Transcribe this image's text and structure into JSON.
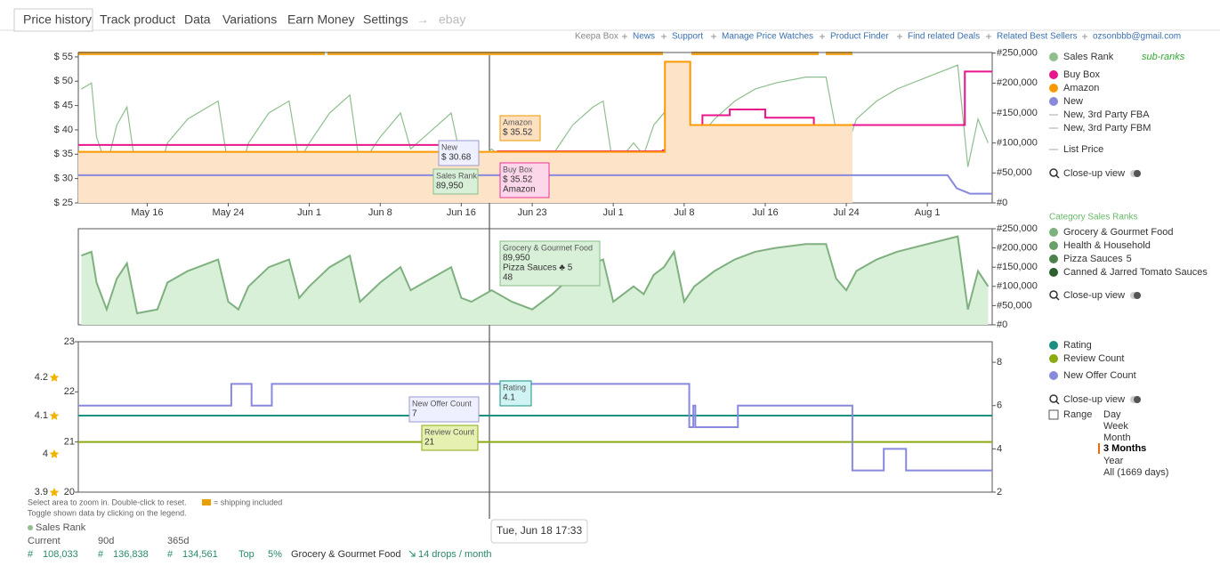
{
  "tabs": [
    "Price history",
    "Track product",
    "Data",
    "Variations",
    "Earn Money",
    "Settings",
    "→",
    "ebay"
  ],
  "links": [
    "Keepa Box",
    "News",
    "Support",
    "Manage Price Watches",
    "Product Finder",
    "Find related Deals",
    "Related Best Sellers",
    "ozsonbbb@gmail.com"
  ],
  "charts": [
    {
      "type": "line",
      "xlim": [
        129.2,
        219.4
      ],
      "xticks": [
        {
          "value": 136,
          "label": "May 16"
        },
        {
          "value": 144,
          "label": "May 24"
        },
        {
          "value": 152,
          "label": "Jun 1"
        },
        {
          "value": 159,
          "label": "Jun 8"
        },
        {
          "value": 167,
          "label": "Jun 16"
        },
        {
          "value": 174,
          "label": "Jun 23"
        },
        {
          "value": 182,
          "label": "Jul 1"
        },
        {
          "value": 189,
          "label": "Jul 8"
        },
        {
          "value": 197,
          "label": "Jul 16"
        },
        {
          "value": 205,
          "label": "Jul 24"
        },
        {
          "value": 213,
          "label": "Aug 1"
        }
      ],
      "ylim": [
        25,
        55.9
      ],
      "yticks": [
        {
          "value": 25,
          "label": "$ 25"
        },
        {
          "value": 30,
          "label": "$ 30"
        },
        {
          "value": 35,
          "label": "$ 35"
        },
        {
          "value": 40,
          "label": "$ 40"
        },
        {
          "value": 45,
          "label": "$ 45"
        },
        {
          "value": 50,
          "label": "$ 50"
        },
        {
          "value": 55,
          "label": "$ 55"
        }
      ],
      "y2lim": [
        0,
        251000
      ],
      "y2ticks": [
        {
          "value": 0,
          "label": "#0"
        },
        {
          "value": 50000,
          "label": "#50,000"
        },
        {
          "value": 100000,
          "label": "#100,000"
        },
        {
          "value": 150000,
          "label": "#150,000"
        },
        {
          "value": 200000,
          "label": "#200,000"
        },
        {
          "value": 250000,
          "label": "#250,000"
        }
      ],
      "series": [
        {
          "name": "Sales Rank",
          "color": "#8fbf8f",
          "axis": "y2",
          "x": [
            129.5,
            130.5,
            131,
            132,
            133,
            134,
            135,
            137,
            138,
            140,
            142,
            143,
            144,
            145,
            146,
            148,
            150,
            151,
            152,
            154,
            156,
            157,
            159,
            161,
            162,
            164,
            166,
            167,
            168,
            170,
            172,
            174,
            176,
            178,
            180,
            181,
            182,
            184,
            185,
            186,
            187,
            188,
            189,
            190,
            192,
            194,
            196,
            198,
            201,
            203,
            204,
            205,
            206,
            208,
            210,
            213,
            216,
            217,
            218,
            219
          ],
          "values": [
            190000,
            200000,
            110000,
            60000,
            130000,
            160000,
            40000,
            40000,
            100000,
            140000,
            160000,
            170000,
            60000,
            40000,
            100000,
            150000,
            170000,
            70000,
            100000,
            150000,
            180000,
            60000,
            110000,
            150000,
            90000,
            120000,
            150000,
            70000,
            60000,
            90000,
            60000,
            50000,
            80000,
            130000,
            160000,
            170000,
            60000,
            100000,
            80000,
            130000,
            150000,
            190000,
            60000,
            100000,
            140000,
            170000,
            190000,
            200000,
            210000,
            210000,
            120000,
            90000,
            140000,
            170000,
            190000,
            210000,
            230000,
            60000,
            140000,
            100000
          ]
        },
        {
          "name": "Buy Box",
          "color": "#e8158c",
          "axis": "y",
          "x": [
            129.2,
            164.9,
            164.9,
            170.6,
            170.6,
            186.9,
            186.9,
            190.8,
            190.8,
            193.5,
            193.5,
            197,
            197,
            201.8,
            201.8,
            202.7,
            202.7,
            216.7,
            216.7,
            219.4
          ],
          "values": [
            36.9,
            36.9,
            35.3,
            35.3,
            35.6,
            35.6,
            35.8,
            35.8,
            43,
            43,
            44.2,
            44.2,
            42.5,
            42.5,
            40,
            40,
            41,
            41,
            52,
            52
          ]
        },
        {
          "name": "Amazon",
          "color": "#ff9900",
          "fill": "#fde3c8",
          "axis": "y",
          "x": [
            129.2,
            187.1,
            187.1,
            189.6,
            189.6,
            205.6
          ],
          "values": [
            35.5,
            35.5,
            54,
            54,
            41,
            41
          ]
        },
        {
          "name": "New",
          "color": "#8888dd",
          "axis": "y",
          "x": [
            129.2,
            215.0,
            215.9,
            217.2,
            219.4
          ],
          "values": [
            30.68,
            30.68,
            28,
            26.9,
            26.9
          ]
        }
      ],
      "legend_extra": [
        {
          "name": "New, 3rd Party FBA",
          "color": "#aaaaaa"
        },
        {
          "name": "New, 3rd Party FBM",
          "color": "#aaaaaa"
        },
        {
          "name": "List Price",
          "color": "#aaaaaa"
        }
      ],
      "sub_ranks": "sub-ranks",
      "closeup": "Close-up view"
    },
    {
      "type": "area",
      "xlim": [
        129.2,
        219.4
      ],
      "y2lim": [
        0,
        250000
      ],
      "y2ticks": [
        {
          "value": 0,
          "label": "#0"
        },
        {
          "value": 50000,
          "label": "#50,000"
        },
        {
          "value": 100000,
          "label": "#100,000"
        },
        {
          "value": 150000,
          "label": "#150,000"
        },
        {
          "value": 200000,
          "label": "#200,000"
        },
        {
          "value": 250000,
          "label": "#250,000"
        }
      ],
      "legend_title": "Category Sales Ranks",
      "series": [
        {
          "name": "Grocery & Gourmet Food",
          "color": "#7fb07f",
          "fill": "#d8efd8",
          "axis": "y2",
          "x": [
            129.5,
            130.5,
            131,
            132,
            133,
            134,
            135,
            137,
            138,
            140,
            142,
            143,
            144,
            145,
            146,
            148,
            150,
            151,
            152,
            154,
            156,
            157,
            159,
            161,
            162,
            164,
            166,
            167,
            168,
            170,
            172,
            174,
            176,
            178,
            180,
            181,
            182,
            184,
            185,
            186,
            187,
            188,
            189,
            190,
            192,
            194,
            196,
            198,
            201,
            203,
            204,
            205,
            206,
            208,
            210,
            213,
            216,
            217,
            218,
            219
          ],
          "values": [
            180000,
            190000,
            110000,
            40000,
            120000,
            160000,
            30000,
            40000,
            110000,
            140000,
            160000,
            170000,
            60000,
            40000,
            100000,
            150000,
            170000,
            70000,
            100000,
            150000,
            180000,
            60000,
            110000,
            150000,
            90000,
            120000,
            150000,
            70000,
            60000,
            90000,
            60000,
            40000,
            80000,
            130000,
            160000,
            170000,
            60000,
            100000,
            80000,
            130000,
            150000,
            190000,
            60000,
            100000,
            140000,
            170000,
            190000,
            200000,
            210000,
            210000,
            120000,
            90000,
            140000,
            170000,
            190000,
            210000,
            230000,
            40000,
            140000,
            100000
          ]
        }
      ],
      "legend_extra": [
        {
          "name": "Health & Household",
          "color": "#6a9f6a"
        },
        {
          "name": "Pizza Sauces",
          "suffix": "5",
          "color": "#4f7f4f"
        },
        {
          "name": "Canned & Jarred Tomato Sauces",
          "color": "#2f5f2f"
        }
      ],
      "closeup": "Close-up view"
    },
    {
      "type": "line",
      "xlim": [
        129.2,
        219.4
      ],
      "ylim": [
        20,
        23
      ],
      "yticks": [
        20,
        21,
        22,
        23
      ],
      "y3lim": [
        3.9,
        4.293
      ],
      "y3ticks": [
        3.9,
        4.0,
        4.1,
        4.2
      ],
      "y2lim": [
        2,
        8.95
      ],
      "y2ticks": [
        2,
        4,
        6,
        8
      ],
      "series": [
        {
          "name": "Rating",
          "color": "#1a9080",
          "axis": "y3",
          "x": [
            129.2,
            219.4
          ],
          "values": [
            4.1,
            4.1
          ]
        },
        {
          "name": "Review Count",
          "color": "#8aaa10",
          "axis": "y",
          "x": [
            129.2,
            219.4
          ],
          "values": [
            21,
            21
          ]
        },
        {
          "name": "New Offer Count",
          "color": "#8888dd",
          "axis": "y2",
          "x": [
            129.2,
            144.3,
            144.3,
            146.3,
            146.3,
            148.3,
            148.3,
            189.5,
            189.5,
            189.9,
            189.9,
            190.1,
            190.1,
            194.3,
            194.3,
            205.6,
            205.6,
            208.7,
            208.7,
            210.9,
            210.9,
            219.4
          ],
          "values": [
            6,
            6,
            7,
            7,
            6,
            6,
            7,
            7,
            5,
            5,
            6,
            6,
            5,
            5,
            6,
            6,
            3,
            3,
            4,
            4,
            3,
            3
          ]
        }
      ],
      "closeup": "Close-up view",
      "range_label": "Range",
      "range_options": [
        "Day",
        "Week",
        "Month",
        "3 Months",
        "Year",
        "All (1669 days)"
      ]
    }
  ],
  "tooltips": [
    {
      "lines": [
        "New",
        "$ 30.68"
      ]
    },
    {
      "lines": [
        "Amazon",
        "$ 35.52"
      ]
    },
    {
      "lines": [
        "Sales Rank",
        "89,950"
      ]
    },
    {
      "lines": [
        "Buy Box",
        "$ 35.52",
        "Amazon"
      ]
    },
    {
      "lines": [
        "Grocery & Gourmet Food",
        "89,950",
        "Pizza Sauces ♣ 5",
        "48"
      ]
    },
    {
      "lines": [
        "Rating",
        "4.1"
      ]
    },
    {
      "lines": [
        "New Offer Count",
        "7"
      ]
    },
    {
      "lines": [
        "Review Count",
        "21"
      ]
    }
  ],
  "crosshair_date": "Tue, Jun 18 17:33",
  "footer": {
    "hint1": "Select area to zoom in. Double-click to reset.",
    "shipping": "= shipping included",
    "hint2": "Toggle shown data by clicking on the legend.",
    "section": "Sales Rank",
    "headers": [
      "Current",
      "90d",
      "365d"
    ],
    "row": [
      "#",
      "108,033",
      "#",
      "136,838",
      "#",
      "134,561",
      "Top",
      "5%",
      "Grocery & Gourmet Food",
      "14 drops / month"
    ]
  }
}
